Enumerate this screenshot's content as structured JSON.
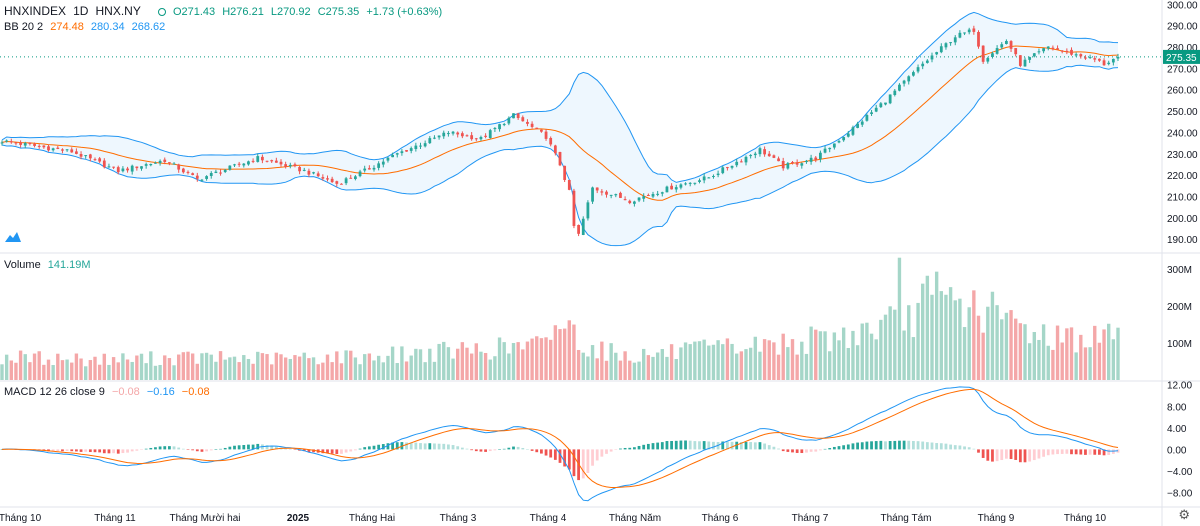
{
  "header": {
    "symbol": "HNXINDEX",
    "interval": "1D",
    "exchange": "HNX.NY",
    "ohlc": {
      "o": "O271.43",
      "h": "H276.21",
      "l": "L270.92",
      "c": "C275.35",
      "chg": "+1.73 (+0.63%)"
    },
    "bb": {
      "label": "BB 20 2",
      "basis": "274.48",
      "upper": "280.34",
      "lower": "268.62"
    },
    "volume": {
      "label": "Volume",
      "value": "141.19M"
    },
    "macd": {
      "label": "MACD 12 26 close 9",
      "hist": "−0.08",
      "macd": "−0.16",
      "signal": "−0.08"
    }
  },
  "colors": {
    "up": "#26a69a",
    "down": "#ef5350",
    "up_vol": "#a5d6c8",
    "down_vol": "#f4a7a8",
    "bb_band": "#2196f3",
    "bb_basis": "#ff6d00",
    "macd": "#2196f3",
    "signal": "#ff6d00",
    "last_price": "#089981"
  },
  "chart_data": {
    "type": "candlestick",
    "x_labels": [
      "Tháng 10",
      "Tháng 11",
      "Tháng Mười hai",
      "2025",
      "Tháng Hai",
      "Tháng 3",
      "Tháng 4",
      "Tháng Năm",
      "Tháng 6",
      "Tháng 7",
      "Tháng Tám",
      "Tháng 9",
      "Tháng 10"
    ],
    "price_axis": {
      "ticks": [
        "300.00",
        "290.00",
        "280.00",
        "270.00",
        "260.00",
        "250.00",
        "240.00",
        "230.00",
        "220.00",
        "210.00",
        "200.00",
        "190.00"
      ],
      "ylim": [
        184,
        302
      ],
      "last_price_label": "275.35",
      "last_price": 275.35
    },
    "volume_axis": {
      "ticks": [
        "300M",
        "200M",
        "100M"
      ],
      "ylim": [
        0,
        340
      ]
    },
    "macd_axis": {
      "ticks": [
        "12.00",
        "8.00",
        "4.00",
        "0.00",
        "−4.00",
        "−8.00"
      ],
      "ylim": [
        -10.5,
        12.5
      ]
    },
    "price_path": [
      [
        0,
        236
      ],
      [
        15,
        231
      ],
      [
        25,
        222
      ],
      [
        35,
        227
      ],
      [
        42,
        218
      ],
      [
        55,
        228
      ],
      [
        65,
        222
      ],
      [
        72,
        216
      ],
      [
        78,
        222
      ],
      [
        85,
        230
      ],
      [
        96,
        240
      ],
      [
        103,
        237
      ],
      [
        110,
        248
      ],
      [
        117,
        238
      ],
      [
        120,
        225
      ],
      [
        122,
        212
      ],
      [
        123,
        196
      ],
      [
        124,
        192
      ],
      [
        127,
        214
      ],
      [
        135,
        208
      ],
      [
        145,
        215
      ],
      [
        152,
        219
      ],
      [
        157,
        225
      ],
      [
        163,
        232
      ],
      [
        168,
        224
      ],
      [
        175,
        228
      ],
      [
        182,
        240
      ],
      [
        190,
        255
      ],
      [
        198,
        272
      ],
      [
        205,
        285
      ],
      [
        209,
        288
      ],
      [
        211,
        274
      ],
      [
        216,
        283
      ],
      [
        219,
        272
      ],
      [
        225,
        280
      ],
      [
        235,
        274
      ],
      [
        237,
        272
      ],
      [
        240,
        275.35
      ]
    ],
    "volume_path": [
      [
        0,
        62
      ],
      [
        20,
        55
      ],
      [
        40,
        60
      ],
      [
        60,
        58
      ],
      [
        80,
        65
      ],
      [
        100,
        80
      ],
      [
        117,
        95
      ],
      [
        119,
        160
      ],
      [
        122,
        140
      ],
      [
        126,
        90
      ],
      [
        135,
        65
      ],
      [
        150,
        80
      ],
      [
        165,
        95
      ],
      [
        180,
        115
      ],
      [
        195,
        165
      ],
      [
        200,
        230
      ],
      [
        205,
        205
      ],
      [
        212,
        185
      ],
      [
        218,
        150
      ],
      [
        225,
        120
      ],
      [
        235,
        110
      ],
      [
        240,
        141.19
      ]
    ],
    "volume_spikes": {
      "193": 330,
      "198": 260,
      "200": 230,
      "205": 215
    },
    "bars": 241
  }
}
